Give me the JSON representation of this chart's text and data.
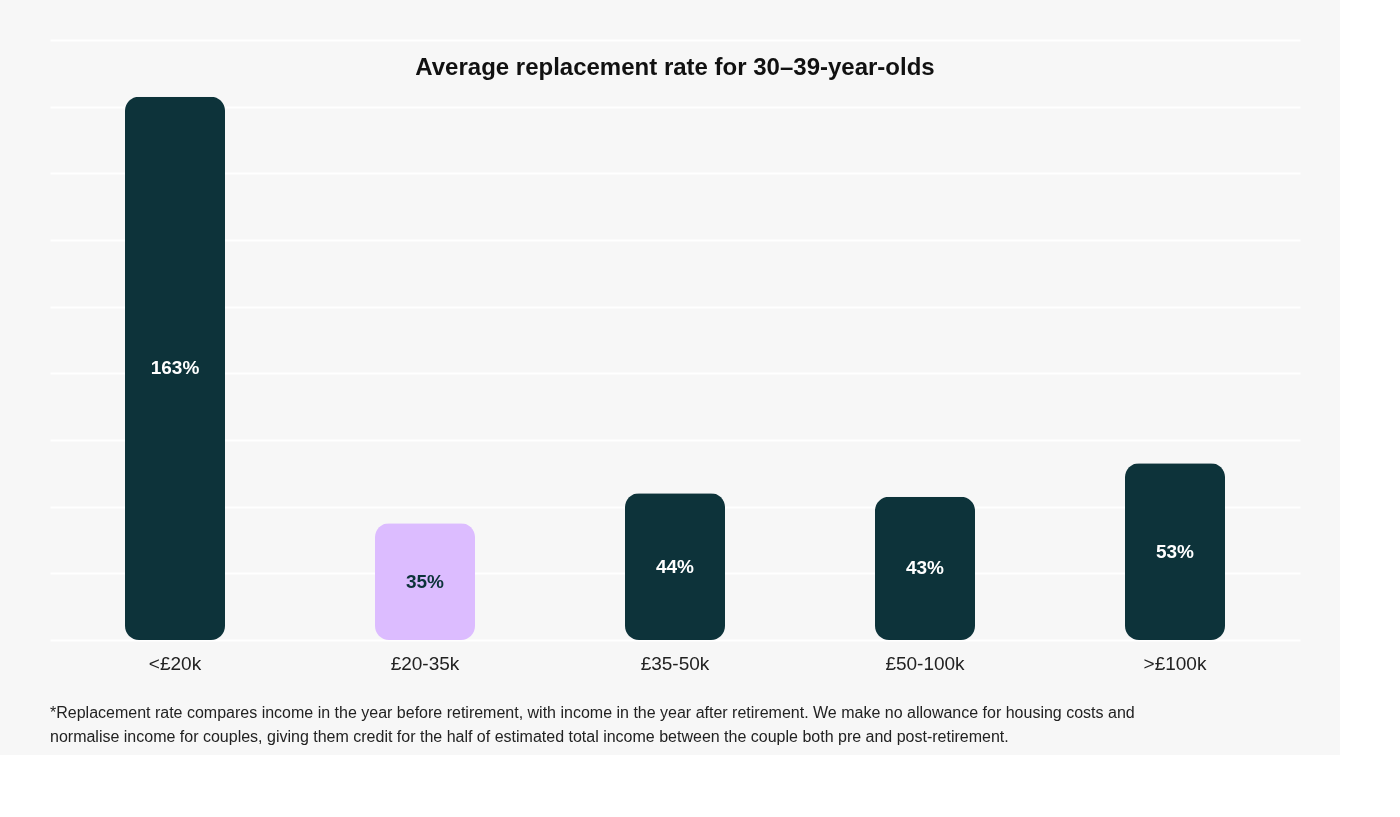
{
  "chart_data": {
    "type": "bar",
    "title": "Average replacement rate for 30–39-year-olds",
    "categories": [
      "<£20k",
      "£20-35k",
      "£35-50k",
      "£50-100k",
      ">£100k"
    ],
    "values": [
      163,
      35,
      44,
      43,
      53
    ],
    "value_labels": [
      "163%",
      "35%",
      "44%",
      "43%",
      "53%"
    ],
    "colors": [
      "#0d333a",
      "#dcbcff",
      "#0d333a",
      "#0d333a",
      "#0d333a"
    ],
    "yticks": [
      {
        "value": 0,
        "label": null
      },
      {
        "value": 20,
        "label": null
      },
      {
        "value": 40,
        "label": null
      },
      {
        "value": 60,
        "label": null
      },
      {
        "value": 80,
        "label": null
      },
      {
        "value": 100,
        "label": null
      },
      {
        "value": 120,
        "label": null
      },
      {
        "value": 140,
        "label": null
      },
      {
        "value": 160,
        "label": null
      },
      {
        "value": 180,
        "label": null
      }
    ],
    "grid": "y",
    "tick_labels": "x",
    "annotations": [
      "*Replacement rate compares income in the year before retirement, with income in the year after retirement. We make no allowance for housing costs and normalise income for couples, giving them credit for the half of estimated total income between the couple both pre and post-retirement."
    ]
  }
}
